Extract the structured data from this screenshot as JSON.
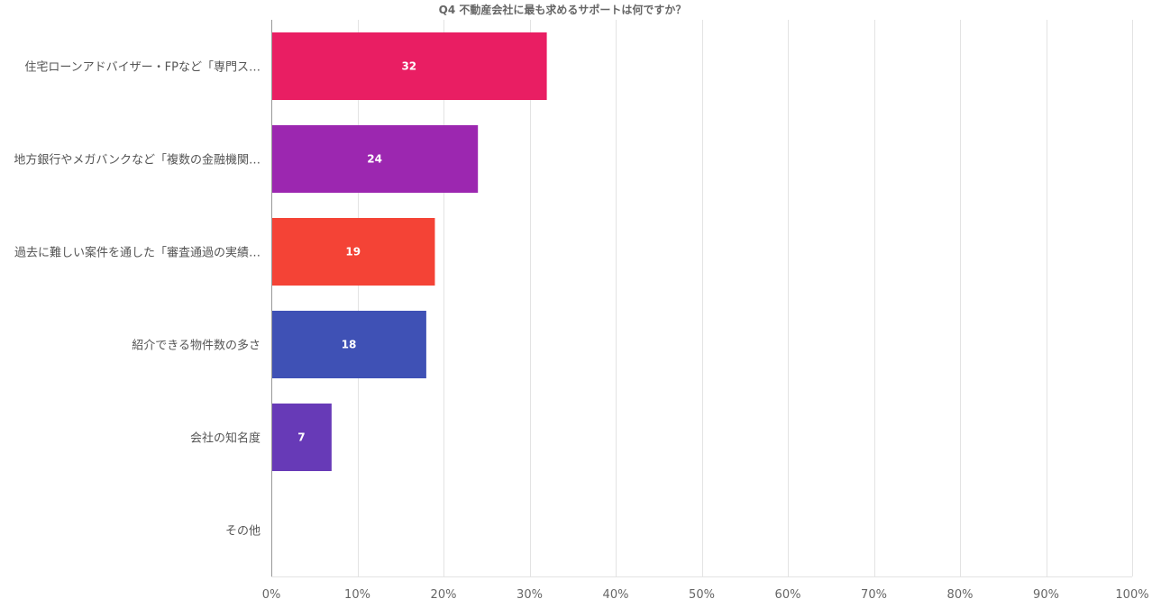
{
  "chart_data": {
    "type": "bar",
    "orientation": "horizontal",
    "title": "Q4 不動産会社に最も求めるサポートは何ですか？",
    "xlabel": "",
    "ylabel": "",
    "xlim": [
      0,
      100
    ],
    "grid": true,
    "legend": "none",
    "categories": [
      "住宅ローンアドバイザー・FPなど「専門ス…",
      "地方銀行やメガバンクなど「複数の金融機関…",
      "過去に難しい案件を通した「審査通過の実績…",
      "紹介できる物件数の多さ",
      "会社の知名度",
      "その他"
    ],
    "values": [
      32,
      24,
      19,
      18,
      7,
      0
    ],
    "value_labels": [
      "32",
      "24",
      "19",
      "18",
      "7",
      ""
    ],
    "colors": [
      "#e91e63",
      "#9c27b0",
      "#f44336",
      "#3f51b5",
      "#673ab7",
      "#2196f3"
    ],
    "ticks": [
      0,
      10,
      20,
      30,
      40,
      50,
      60,
      70,
      80,
      90,
      100
    ],
    "tick_labels": [
      "0%",
      "10%",
      "20%",
      "30%",
      "40%",
      "50%",
      "60%",
      "70%",
      "80%",
      "90%",
      "100%"
    ]
  }
}
